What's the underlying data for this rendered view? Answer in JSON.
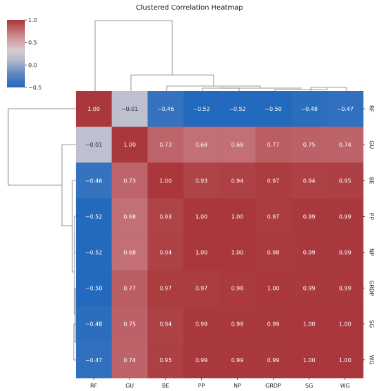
{
  "chart_data": {
    "type": "heatmap",
    "title": "Clustered Correlation Heatmap",
    "row_labels": [
      "RF",
      "GU",
      "BE",
      "PP",
      "NP",
      "GRDP",
      "SG",
      "WG"
    ],
    "col_labels": [
      "RF",
      "GU",
      "BE",
      "PP",
      "NP",
      "GRDP",
      "SG",
      "WG"
    ],
    "values": [
      [
        1.0,
        -0.01,
        -0.46,
        -0.52,
        -0.52,
        -0.5,
        -0.48,
        -0.47
      ],
      [
        -0.01,
        1.0,
        0.73,
        0.68,
        0.68,
        0.77,
        0.75,
        0.74
      ],
      [
        -0.46,
        0.73,
        1.0,
        0.93,
        0.94,
        0.97,
        0.94,
        0.95
      ],
      [
        -0.52,
        0.68,
        0.93,
        1.0,
        1.0,
        0.97,
        0.99,
        0.99
      ],
      [
        -0.52,
        0.68,
        0.94,
        1.0,
        1.0,
        0.98,
        0.99,
        0.99
      ],
      [
        -0.5,
        0.77,
        0.97,
        0.97,
        0.98,
        1.0,
        0.99,
        0.99
      ],
      [
        -0.48,
        0.75,
        0.94,
        0.99,
        0.99,
        0.99,
        1.0,
        1.0
      ],
      [
        -0.47,
        0.74,
        0.95,
        0.99,
        0.99,
        0.99,
        1.0,
        1.0
      ]
    ],
    "value_labels": [
      [
        "1.00",
        "−0.01",
        "−0.46",
        "−0.52",
        "−0.52",
        "−0.50",
        "−0.48",
        "−0.47"
      ],
      [
        "−0.01",
        "1.00",
        "0.73",
        "0.68",
        "0.68",
        "0.77",
        "0.75",
        "0.74"
      ],
      [
        "−0.46",
        "0.73",
        "1.00",
        "0.93",
        "0.94",
        "0.97",
        "0.94",
        "0.95"
      ],
      [
        "−0.52",
        "0.68",
        "0.93",
        "1.00",
        "1.00",
        "0.97",
        "0.99",
        "0.99"
      ],
      [
        "−0.52",
        "0.68",
        "0.94",
        "1.00",
        "1.00",
        "0.98",
        "0.99",
        "0.99"
      ],
      [
        "−0.50",
        "0.77",
        "0.97",
        "0.97",
        "0.98",
        "1.00",
        "0.99",
        "0.99"
      ],
      [
        "−0.48",
        "0.75",
        "0.94",
        "0.99",
        "0.99",
        "0.99",
        "1.00",
        "1.00"
      ],
      [
        "−0.47",
        "0.74",
        "0.95",
        "0.99",
        "0.99",
        "0.99",
        "1.00",
        "1.00"
      ]
    ],
    "colorbar": {
      "range": [
        -0.5,
        1.0
      ],
      "ticks": [
        1.0,
        0.5,
        0.0,
        -0.5
      ],
      "tick_labels": [
        "1.0",
        "0.5",
        "0.0",
        "−0.5"
      ],
      "colormap": "vlag",
      "colors": [
        "#2369bd",
        "#a9b1c6",
        "#c9c9d2",
        "#e2b2b6",
        "#c06a71",
        "#a9373b"
      ]
    },
    "grid": false
  }
}
